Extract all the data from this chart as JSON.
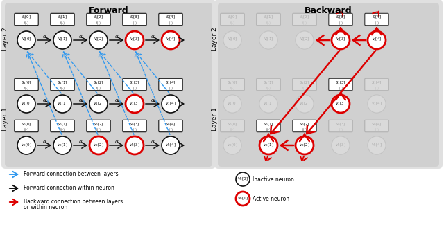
{
  "title_forward": "Forward",
  "title_backward": "Backward",
  "title_fontsize": 9,
  "bg_outer": "#e0e0e0",
  "bg_layer": "#d0d0d0",
  "bg_white": "#ffffff",
  "active_color": "#dd0000",
  "inactive_ec": "#333333",
  "faded_alpha": 0.22,
  "blue_color": "#3399ee",
  "black_color": "#111111",
  "red_color": "#dd0000",
  "fw_active_vj": [
    3,
    4
  ],
  "fw_active_v1": [
    3
  ],
  "fw_active_v0": [
    2,
    3
  ],
  "bw_active_vj": [
    3,
    4
  ],
  "bw_active_v1": [
    3
  ],
  "bw_active_v0": [
    1,
    2
  ],
  "bw_active_sj": [
    3,
    4
  ],
  "bw_active_s1": [
    3
  ],
  "bw_active_s0": [
    1,
    2
  ],
  "legend_left": [
    [
      "blue",
      "Forward connection between layers"
    ],
    [
      "black",
      "Forward connection within neuron"
    ],
    [
      "red",
      "Backward connection between layers\nor within neuron"
    ]
  ],
  "legend_right": [
    [
      "inactive",
      "Inactive neuron"
    ],
    [
      "active",
      "Active neuron"
    ]
  ]
}
